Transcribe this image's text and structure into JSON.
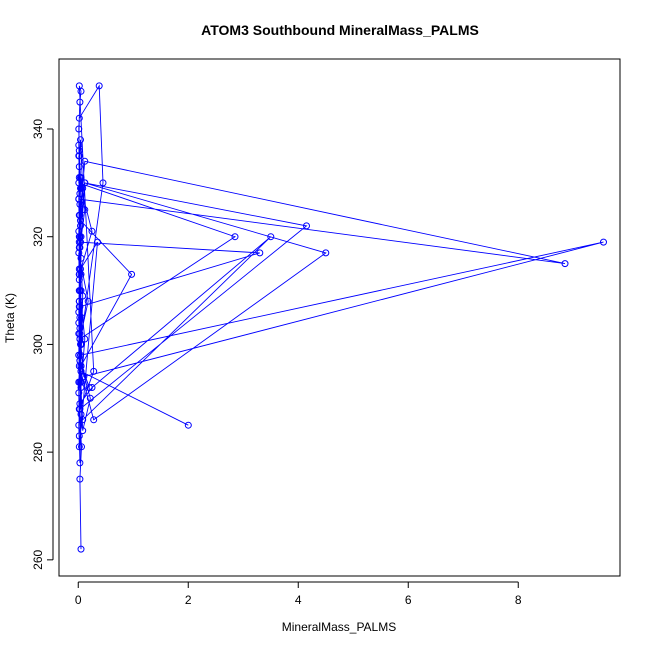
{
  "chart_data": {
    "type": "line",
    "title": "ATOM3 Southbound MineralMass_PALMS",
    "xlabel": "MineralMass_PALMS",
    "ylabel": "Theta (K)",
    "xlim": [
      -0.35,
      9.85
    ],
    "ylim": [
      257,
      353
    ],
    "xticks": [
      0,
      2,
      4,
      6,
      8
    ],
    "yticks": [
      260,
      280,
      300,
      320,
      340
    ],
    "grid": false,
    "legend": "none",
    "series_color": "#0000ff",
    "series": [
      {
        "marker": "open-circle",
        "x": [
          0.05,
          0.03,
          0.06,
          0.02,
          0.01,
          0.04,
          0.02,
          0.05,
          0.03,
          0.01,
          0.02,
          0.04,
          0.08,
          0.02,
          0.03,
          0.12,
          0.05,
          0.08,
          0.22,
          0.03,
          0.06,
          0.02,
          0.25,
          0.05,
          0.01,
          0.02,
          0.04,
          0.97,
          0.05,
          0.03,
          0.02,
          0.01,
          0.18,
          0.03,
          0.05,
          0.01,
          0.02,
          0.35,
          0.04,
          0.02,
          0.01,
          0.03,
          0.2,
          0.05,
          0.03,
          2.85,
          0.01,
          0.02,
          0.04,
          0.02,
          3.3,
          0.03,
          0.01,
          0.05,
          0.03,
          0.02,
          0.01,
          0.06,
          0.08,
          0.03,
          0.12,
          0.04,
          0.02,
          0.01,
          0.03,
          0.05,
          0.02,
          0.28,
          0.03,
          4.15,
          0.12,
          0.05,
          0.03,
          0.02,
          0.28,
          4.5,
          0.12,
          0.04,
          0.02,
          0.01,
          0.05,
          0.03,
          0.25,
          3.5,
          0.08,
          0.03,
          0.05,
          0.01,
          0.02,
          0.04,
          0.02,
          0.05,
          0.03,
          0.01,
          0.02,
          0.04,
          9.55,
          0.1,
          0.03,
          0.05,
          0.02,
          0.01,
          8.85,
          0.12,
          0.03,
          0.05,
          0.02,
          0.01,
          0.45,
          0.38,
          0.02,
          0.01,
          0.03,
          0.05,
          2.0
        ],
        "y": [
          262,
          275,
          281,
          288,
          293,
          300,
          308,
          313,
          320,
          327,
          333,
          338,
          329,
          320,
          310,
          301,
          292,
          284,
          290,
          297,
          305,
          313,
          321,
          329,
          335,
          331,
          323,
          313,
          296,
          303,
          310,
          317,
          308,
          301,
          293,
          285,
          281,
          319,
          314,
          308,
          302,
          297,
          292,
          296,
          301,
          320,
          330,
          335,
          329,
          319,
          317,
          307,
          298,
          287,
          278,
          283,
          291,
          300,
          309,
          318,
          325,
          331,
          336,
          340,
          345,
          347,
          348,
          295,
          288,
          322,
          330,
          320,
          305,
          296,
          286,
          317,
          330,
          322,
          313,
          304,
          295,
          289,
          292,
          320,
          286,
          293,
          300,
          306,
          312,
          319,
          324,
          331,
          326,
          321,
          314,
          298,
          319,
          294,
          302,
          310,
          318,
          327,
          315,
          334,
          324,
          316,
          307,
          298,
          330,
          348,
          342,
          337,
          328,
          295,
          285
        ]
      }
    ]
  }
}
